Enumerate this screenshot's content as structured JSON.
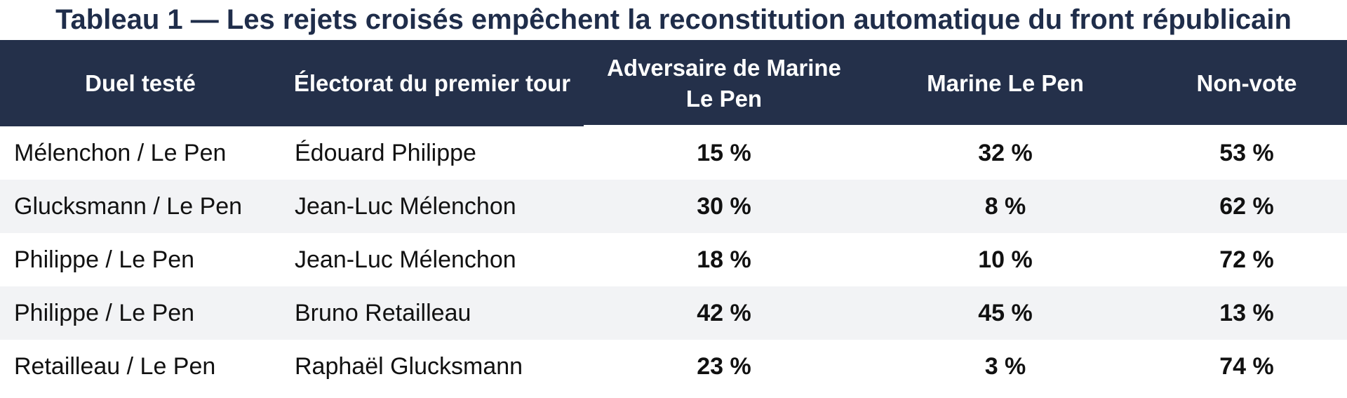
{
  "chart_data": {
    "type": "table",
    "title": "Tableau 1 — Les rejets croisés empêchent la reconstitution automatique du front républicain",
    "columns": [
      "Duel testé",
      "Électorat du premier tour",
      "Adversaire de Marine Le Pen",
      "Marine Le Pen",
      "Non-vote"
    ],
    "rows": [
      {
        "duel": "Mélenchon / Le Pen",
        "electorat": "Édouard Philippe",
        "adversaire": "15 %",
        "le_pen": "32 %",
        "non_vote": "53 %"
      },
      {
        "duel": "Glucksmann / Le Pen",
        "electorat": "Jean-Luc Mélenchon",
        "adversaire": "30 %",
        "le_pen": "8 %",
        "non_vote": "62 %"
      },
      {
        "duel": "Philippe / Le Pen",
        "electorat": "Jean-Luc Mélenchon",
        "adversaire": "18 %",
        "le_pen": "10 %",
        "non_vote": "72 %"
      },
      {
        "duel": "Philippe / Le Pen",
        "electorat": "Bruno Retailleau",
        "adversaire": "42 %",
        "le_pen": "45 %",
        "non_vote": "13 %"
      },
      {
        "duel": "Retailleau / Le Pen",
        "electorat": "Raphaël Glucksmann",
        "adversaire": "23 %",
        "le_pen": "3 %",
        "non_vote": "74 %"
      }
    ]
  },
  "colors": {
    "header_background": "#24304a",
    "title_text": "#1f2d4a",
    "alternate_row": "#f2f3f5"
  }
}
